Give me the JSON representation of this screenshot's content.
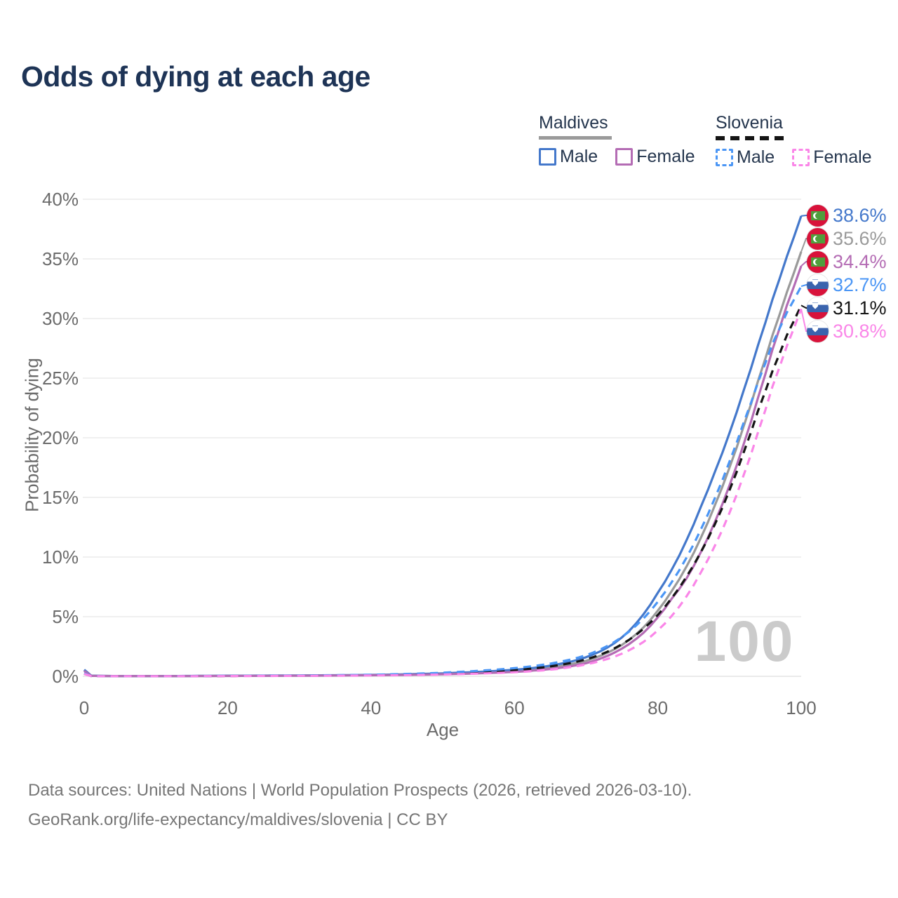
{
  "title": "Odds of dying at each age",
  "watermark": "100",
  "legend": {
    "groups": [
      {
        "country": "Maldives",
        "items": [
          {
            "label": "Male"
          },
          {
            "label": "Female"
          }
        ]
      },
      {
        "country": "Slovenia",
        "items": [
          {
            "label": "Male"
          },
          {
            "label": "Female"
          }
        ]
      }
    ]
  },
  "footer": {
    "line1": "Data sources: United Nations | World Population Prospects (2026, retrieved 2026-03-10).",
    "line2": "GeoRank.org/life-expectancy/maldives/slovenia | CC BY"
  },
  "chart_data": {
    "type": "line",
    "title": "Odds of dying at each age",
    "xlabel": "Age",
    "ylabel": "Probability of dying",
    "xlim": [
      0,
      100
    ],
    "ylim": [
      0,
      40
    ],
    "x_ticks": [
      0,
      20,
      40,
      60,
      80,
      100
    ],
    "y_ticks": [
      0,
      5,
      10,
      15,
      20,
      25,
      30,
      35,
      40
    ],
    "y_tick_suffix": "%",
    "grid": "horizontal",
    "legend_position": "top-right",
    "ages": [
      0,
      1,
      5,
      10,
      15,
      20,
      25,
      30,
      35,
      40,
      45,
      50,
      55,
      60,
      62,
      64,
      66,
      68,
      70,
      72,
      74,
      76,
      78,
      80,
      82,
      84,
      86,
      88,
      90,
      92,
      94,
      96,
      98,
      100
    ],
    "series": [
      {
        "name": "Maldives Both sexes",
        "country": "Maldives",
        "sex": "Both sexes",
        "flag": "mv",
        "color": "#9a9a9a",
        "dashed": false,
        "end_label": "35.6%",
        "end_value": 35.6,
        "values": [
          0.5,
          0.04,
          0.02,
          0.02,
          0.025,
          0.04,
          0.05,
          0.06,
          0.08,
          0.1,
          0.14,
          0.21,
          0.3,
          0.45,
          0.54,
          0.66,
          0.82,
          1.03,
          1.3,
          1.72,
          2.28,
          3.05,
          4.1,
          5.5,
          7.2,
          9.2,
          11.6,
          14.4,
          17.5,
          21.0,
          24.8,
          28.6,
          32.2,
          35.6
        ]
      },
      {
        "name": "Maldives Male",
        "country": "Maldives",
        "sex": "Male",
        "flag": "mv",
        "color": "#4478cb",
        "dashed": false,
        "end_label": "38.6%",
        "end_value": 38.6,
        "values": [
          0.55,
          0.05,
          0.02,
          0.02,
          0.03,
          0.05,
          0.06,
          0.07,
          0.09,
          0.12,
          0.17,
          0.25,
          0.37,
          0.55,
          0.66,
          0.8,
          1.0,
          1.25,
          1.6,
          2.1,
          2.8,
          3.8,
          5.2,
          7.0,
          9.0,
          11.4,
          14.2,
          17.2,
          20.4,
          24.0,
          27.8,
          31.6,
          35.2,
          38.6
        ]
      },
      {
        "name": "Maldives Female",
        "country": "Maldives",
        "sex": "Female",
        "flag": "mv",
        "color": "#b46cb4",
        "dashed": false,
        "end_label": "34.4%",
        "end_value": 34.4,
        "values": [
          0.45,
          0.04,
          0.015,
          0.015,
          0.02,
          0.03,
          0.04,
          0.05,
          0.065,
          0.09,
          0.12,
          0.17,
          0.25,
          0.37,
          0.45,
          0.55,
          0.68,
          0.86,
          1.1,
          1.48,
          2.0,
          2.7,
          3.65,
          4.95,
          6.55,
          8.2,
          10.4,
          13.0,
          16.0,
          19.5,
          23.4,
          27.4,
          31.1,
          34.4
        ]
      },
      {
        "name": "Slovenia Both sexes",
        "country": "Slovenia",
        "sex": "Both sexes",
        "flag": "si",
        "color": "#141414",
        "dashed": true,
        "end_label": "31.1%",
        "end_value": 31.1,
        "values": [
          0.22,
          0.02,
          0.01,
          0.01,
          0.015,
          0.03,
          0.04,
          0.05,
          0.07,
          0.1,
          0.15,
          0.23,
          0.35,
          0.52,
          0.62,
          0.75,
          0.92,
          1.13,
          1.42,
          1.82,
          2.36,
          3.06,
          3.98,
          5.15,
          6.6,
          8.35,
          10.4,
          12.8,
          15.6,
          18.8,
          22.3,
          25.6,
          28.6,
          31.1
        ]
      },
      {
        "name": "Slovenia Male",
        "country": "Slovenia",
        "sex": "Male",
        "flag": "si",
        "color": "#4b96f5",
        "dashed": true,
        "end_label": "32.7%",
        "end_value": 32.7,
        "values": [
          0.25,
          0.02,
          0.01,
          0.01,
          0.02,
          0.04,
          0.05,
          0.06,
          0.09,
          0.13,
          0.2,
          0.3,
          0.46,
          0.68,
          0.81,
          0.97,
          1.17,
          1.43,
          1.77,
          2.25,
          2.9,
          3.75,
          4.85,
          6.25,
          7.95,
          9.95,
          12.3,
          15.0,
          18.0,
          21.3,
          24.7,
          27.9,
          30.5,
          32.7
        ]
      },
      {
        "name": "Slovenia Female",
        "country": "Slovenia",
        "sex": "Female",
        "flag": "si",
        "color": "#fa86e8",
        "dashed": true,
        "end_label": "30.8%",
        "end_value": 30.8,
        "values": [
          0.2,
          0.015,
          0.01,
          0.01,
          0.012,
          0.02,
          0.03,
          0.04,
          0.05,
          0.07,
          0.1,
          0.15,
          0.23,
          0.34,
          0.41,
          0.5,
          0.62,
          0.78,
          1.0,
          1.28,
          1.66,
          2.18,
          2.88,
          3.85,
          5.1,
          6.7,
          8.7,
          11.0,
          13.7,
          16.9,
          20.5,
          24.3,
          27.7,
          30.8
        ]
      }
    ]
  }
}
